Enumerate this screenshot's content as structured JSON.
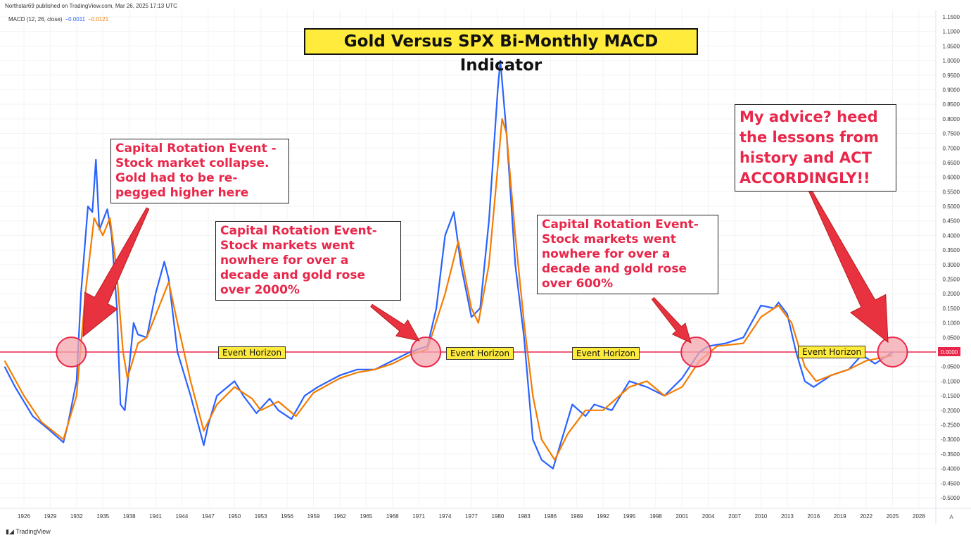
{
  "header": {
    "published": "Northstar69 published on TradingView.com, Mar 26, 2025 17:13 UTC",
    "indicator": "MACD (12, 26, close)",
    "macd_value": "−0.0011",
    "signal_value": "−0.0121"
  },
  "footer": {
    "brand": "TradingView"
  },
  "scale_mode": "A",
  "annotations": {
    "title": "Gold Versus SPX Bi-Monthly MACD Indicator",
    "note1": "Capital Rotation Event - Stock market collapse. Gold had to be re-pegged higher here",
    "note2": "Capital Rotation Event- Stock markets went nowhere for over a decade and gold rose over 2000%",
    "note3": "Capital Rotation Event- Stock markets went nowhere for over a decade and gold rose over 600%",
    "note4": "My advice? heed the lessons from history and ACT ACCORDINGLY!!",
    "event_horizon": "Event Horizon"
  },
  "colors": {
    "macd": "#2962ff",
    "signal": "#f57c00",
    "zero_line": "#e8274a",
    "highlight": "#f4a6ae"
  },
  "chart_data": {
    "type": "line",
    "title": "Gold Versus SPX Bi-Monthly MACD Indicator",
    "ylim": [
      -0.52,
      1.17
    ],
    "xlim": [
      1923.8,
      2030
    ],
    "x_ticks": [
      1926,
      1929,
      1932,
      1935,
      1938,
      1941,
      1944,
      1947,
      1950,
      1953,
      1956,
      1959,
      1962,
      1965,
      1968,
      1971,
      1974,
      1977,
      1980,
      1983,
      1986,
      1989,
      1992,
      1995,
      1998,
      2001,
      2004,
      2007,
      2010,
      2013,
      2016,
      2019,
      2022,
      2025,
      2028
    ],
    "y_ticks": [
      "1.1500",
      "1.1000",
      "1.0500",
      "1.0000",
      "0.9500",
      "0.9000",
      "0.8500",
      "0.8000",
      "0.7500",
      "0.7000",
      "0.6500",
      "0.6000",
      "0.5500",
      "0.5000",
      "0.4500",
      "0.4000",
      "0.3500",
      "0.3000",
      "0.2500",
      "0.2000",
      "0.1500",
      "0.1000",
      "0.0500",
      "0.0000",
      "-0.0500",
      "-0.1000",
      "-0.1500",
      "-0.2000",
      "-0.2500",
      "-0.3000",
      "-0.3500",
      "-0.4000",
      "-0.4500",
      "-0.5000"
    ],
    "series": [
      {
        "name": "MACD",
        "points": [
          [
            1923.8,
            -0.05
          ],
          [
            1925,
            -0.12
          ],
          [
            1927,
            -0.22
          ],
          [
            1929,
            -0.27
          ],
          [
            1930.5,
            -0.31
          ],
          [
            1931,
            -0.25
          ],
          [
            1932,
            -0.1
          ],
          [
            1932.5,
            0.2
          ],
          [
            1933.3,
            0.5
          ],
          [
            1933.8,
            0.48
          ],
          [
            1934.2,
            0.66
          ],
          [
            1934.6,
            0.42
          ],
          [
            1935.5,
            0.49
          ],
          [
            1936,
            0.4
          ],
          [
            1936.6,
            0.15
          ],
          [
            1937,
            -0.18
          ],
          [
            1937.5,
            -0.2
          ],
          [
            1938.5,
            0.1
          ],
          [
            1939,
            0.06
          ],
          [
            1940,
            0.05
          ],
          [
            1941,
            0.2
          ],
          [
            1942,
            0.31
          ],
          [
            1942.5,
            0.25
          ],
          [
            1943.5,
            0.0
          ],
          [
            1945,
            -0.15
          ],
          [
            1946.5,
            -0.32
          ],
          [
            1947,
            -0.25
          ],
          [
            1948,
            -0.15
          ],
          [
            1950,
            -0.1
          ],
          [
            1951,
            -0.15
          ],
          [
            1952.5,
            -0.21
          ],
          [
            1954,
            -0.16
          ],
          [
            1955,
            -0.2
          ],
          [
            1956.5,
            -0.23
          ],
          [
            1958,
            -0.15
          ],
          [
            1959.5,
            -0.12
          ],
          [
            1962,
            -0.08
          ],
          [
            1964,
            -0.06
          ],
          [
            1966,
            -0.06
          ],
          [
            1968,
            -0.03
          ],
          [
            1970,
            0.0
          ],
          [
            1972,
            0.02
          ],
          [
            1973,
            0.15
          ],
          [
            1974,
            0.4
          ],
          [
            1975,
            0.48
          ],
          [
            1975.8,
            0.3
          ],
          [
            1977,
            0.12
          ],
          [
            1978,
            0.15
          ],
          [
            1979,
            0.45
          ],
          [
            1980,
            0.9
          ],
          [
            1980.3,
            1.0
          ],
          [
            1981,
            0.75
          ],
          [
            1982,
            0.3
          ],
          [
            1983,
            0.05
          ],
          [
            1984,
            -0.3
          ],
          [
            1985,
            -0.37
          ],
          [
            1986.3,
            -0.4
          ],
          [
            1987,
            -0.33
          ],
          [
            1988.5,
            -0.18
          ],
          [
            1990,
            -0.22
          ],
          [
            1991,
            -0.18
          ],
          [
            1993,
            -0.2
          ],
          [
            1995,
            -0.1
          ],
          [
            1997,
            -0.12
          ],
          [
            1999,
            -0.15
          ],
          [
            2001,
            -0.09
          ],
          [
            2003,
            0.0
          ],
          [
            2004,
            0.02
          ],
          [
            2006,
            0.03
          ],
          [
            2008,
            0.05
          ],
          [
            2010,
            0.16
          ],
          [
            2011.5,
            0.15
          ],
          [
            2012,
            0.17
          ],
          [
            2013,
            0.13
          ],
          [
            2014,
            0.0
          ],
          [
            2015,
            -0.1
          ],
          [
            2016,
            -0.12
          ],
          [
            2018,
            -0.08
          ],
          [
            2020,
            -0.06
          ],
          [
            2021.5,
            -0.01
          ],
          [
            2023,
            -0.04
          ],
          [
            2025,
            -0.0011
          ]
        ]
      },
      {
        "name": "Signal",
        "points": [
          [
            1923.8,
            -0.03
          ],
          [
            1926,
            -0.15
          ],
          [
            1928,
            -0.24
          ],
          [
            1930.5,
            -0.3
          ],
          [
            1932,
            -0.15
          ],
          [
            1933,
            0.2
          ],
          [
            1934,
            0.46
          ],
          [
            1935,
            0.4
          ],
          [
            1935.8,
            0.46
          ],
          [
            1936.5,
            0.3
          ],
          [
            1937.3,
            0.0
          ],
          [
            1937.8,
            -0.09
          ],
          [
            1939,
            0.03
          ],
          [
            1940,
            0.05
          ],
          [
            1942.5,
            0.24
          ],
          [
            1943.5,
            0.1
          ],
          [
            1945,
            -0.1
          ],
          [
            1946.5,
            -0.27
          ],
          [
            1948,
            -0.18
          ],
          [
            1950,
            -0.12
          ],
          [
            1952,
            -0.16
          ],
          [
            1953,
            -0.2
          ],
          [
            1955,
            -0.17
          ],
          [
            1957,
            -0.22
          ],
          [
            1959,
            -0.14
          ],
          [
            1962,
            -0.09
          ],
          [
            1964,
            -0.07
          ],
          [
            1966,
            -0.06
          ],
          [
            1968,
            -0.04
          ],
          [
            1970,
            -0.01
          ],
          [
            1972,
            0.01
          ],
          [
            1974,
            0.2
          ],
          [
            1975.5,
            0.38
          ],
          [
            1977,
            0.15
          ],
          [
            1977.8,
            0.1
          ],
          [
            1979,
            0.3
          ],
          [
            1980.5,
            0.8
          ],
          [
            1981,
            0.75
          ],
          [
            1982,
            0.4
          ],
          [
            1983,
            0.1
          ],
          [
            1984,
            -0.15
          ],
          [
            1985,
            -0.3
          ],
          [
            1986.5,
            -0.37
          ],
          [
            1988,
            -0.28
          ],
          [
            1990,
            -0.2
          ],
          [
            1992,
            -0.2
          ],
          [
            1995,
            -0.12
          ],
          [
            1997,
            -0.1
          ],
          [
            1999,
            -0.15
          ],
          [
            2001,
            -0.12
          ],
          [
            2003,
            -0.03
          ],
          [
            2005,
            0.02
          ],
          [
            2008,
            0.03
          ],
          [
            2010,
            0.12
          ],
          [
            2012,
            0.16
          ],
          [
            2013.5,
            0.1
          ],
          [
            2015,
            -0.05
          ],
          [
            2016.3,
            -0.1
          ],
          [
            2018,
            -0.08
          ],
          [
            2020,
            -0.06
          ],
          [
            2022,
            -0.03
          ],
          [
            2025,
            -0.0121
          ]
        ]
      }
    ],
    "highlight_years": [
      1931.4,
      1971.8,
      2002.6,
      2025
    ]
  }
}
